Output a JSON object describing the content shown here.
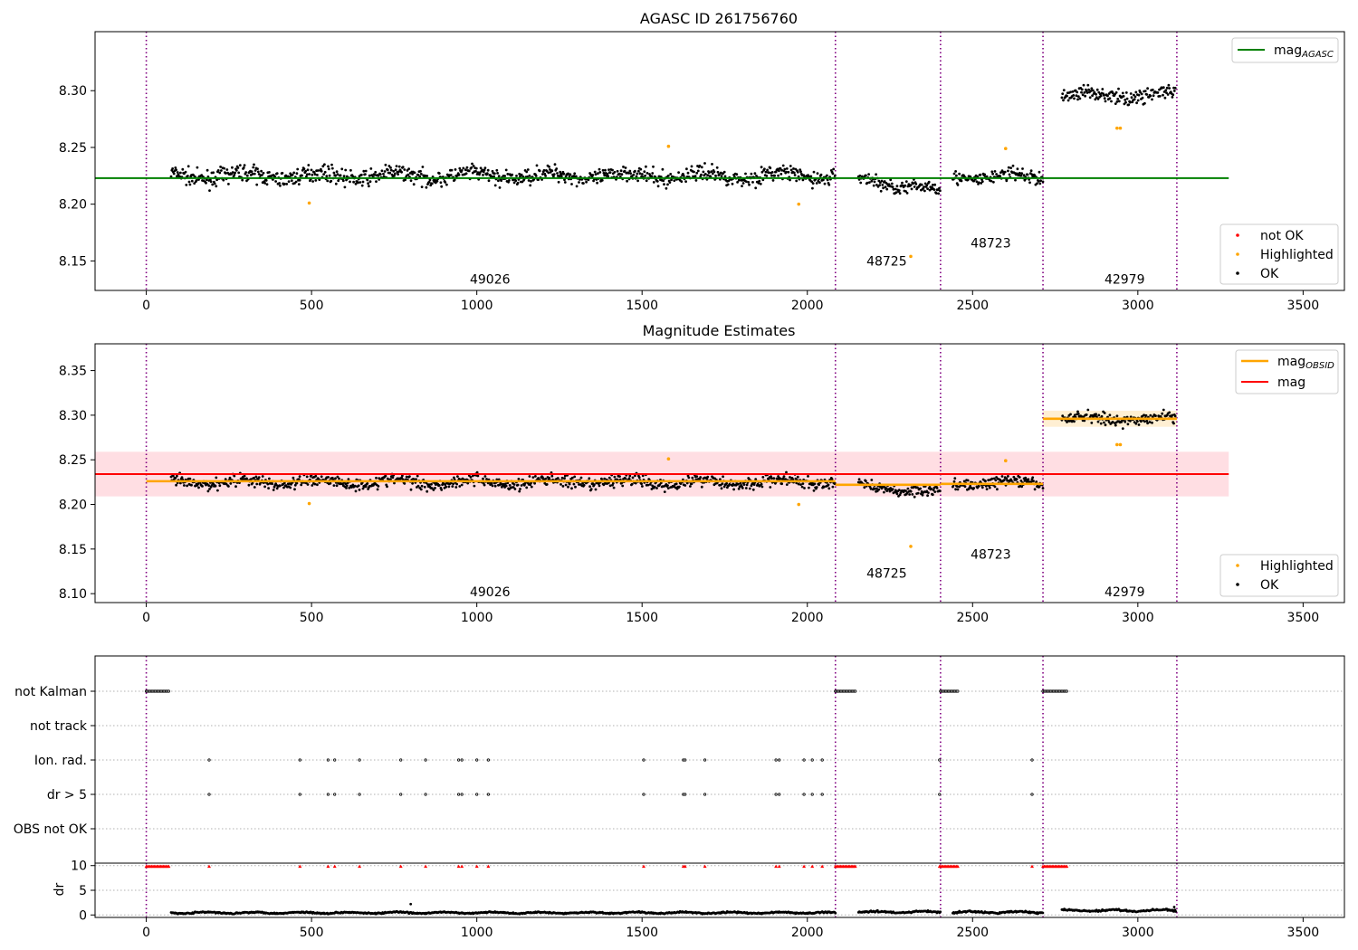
{
  "chart_data": [
    {
      "type": "scatter",
      "title": "AGASC ID 261756760",
      "xlim": [
        -155,
        3625
      ],
      "ylim": [
        8.124,
        8.352
      ],
      "xticks": [
        0,
        500,
        1000,
        1500,
        2000,
        2500,
        3000,
        3500
      ],
      "yticks": [
        8.15,
        8.2,
        8.25,
        8.3
      ],
      "ytick_labels": [
        "8.15",
        "8.20",
        "8.25",
        "8.30"
      ],
      "grid": false,
      "obsid_boundaries": [
        0,
        2085,
        2403,
        2713,
        3118
      ],
      "obsid_labels": [
        {
          "text": "49026",
          "x": 1040,
          "y": 8.13
        },
        {
          "text": "48725",
          "x": 2240,
          "y": 8.146
        },
        {
          "text": "48723",
          "x": 2555,
          "y": 8.162
        },
        {
          "text": "42979",
          "x": 2960,
          "y": 8.13
        }
      ],
      "series": [
        {
          "name": "mag_AGASC",
          "kind": "hline",
          "y": 8.223,
          "x_range": [
            -155,
            3275
          ],
          "color": "#008000"
        },
        {
          "name": "not OK",
          "kind": "points",
          "color": "#ff0000",
          "values": []
        },
        {
          "name": "Highlighted",
          "kind": "points",
          "color": "#ffa500",
          "points": [
            [
              493,
              8.201
            ],
            [
              1580,
              8.251
            ],
            [
              1974,
              8.2
            ],
            [
              2313,
              8.154
            ],
            [
              2600,
              8.249
            ],
            [
              2937,
              8.267
            ],
            [
              2947,
              8.267
            ]
          ]
        },
        {
          "name": "OK",
          "kind": "points",
          "color": "#000000",
          "segments": [
            {
              "x": [
                75,
                2085
              ],
              "mean": 8.225,
              "spread": 0.009
            },
            {
              "x": [
                2155,
                2403
              ],
              "mean": 8.222,
              "spread": 0.008,
              "trend": -0.01
            },
            {
              "x": [
                2440,
                2713
              ],
              "mean": 8.224,
              "spread": 0.008
            },
            {
              "x": [
                2770,
                3115
              ],
              "mean": 8.296,
              "spread": 0.008
            }
          ]
        }
      ],
      "legend": [
        {
          "label": "mag",
          "subscript": "AGASC",
          "color": "#008000",
          "kind": "line",
          "placement": "top-right"
        },
        {
          "label": "not OK",
          "color": "#ff0000",
          "kind": "point",
          "placement": "bottom-right"
        },
        {
          "label": "Highlighted",
          "color": "#ffa500",
          "kind": "point",
          "placement": "bottom-right"
        },
        {
          "label": "OK",
          "color": "#000000",
          "kind": "point",
          "placement": "bottom-right"
        }
      ]
    },
    {
      "type": "scatter",
      "title": "Magnitude Estimates",
      "xlim": [
        -155,
        3625
      ],
      "ylim": [
        8.09,
        8.38
      ],
      "xticks": [
        0,
        500,
        1000,
        1500,
        2000,
        2500,
        3000,
        3500
      ],
      "yticks": [
        8.1,
        8.15,
        8.2,
        8.25,
        8.3,
        8.35
      ],
      "ytick_labels": [
        "8.10",
        "8.15",
        "8.20",
        "8.25",
        "8.30",
        "8.35"
      ],
      "grid": false,
      "obsid_boundaries": [
        0,
        2085,
        2403,
        2713,
        3118
      ],
      "obsid_labels": [
        {
          "text": "49026",
          "x": 1040,
          "y": 8.097
        },
        {
          "text": "48725",
          "x": 2240,
          "y": 8.118
        },
        {
          "text": "48723",
          "x": 2555,
          "y": 8.139
        },
        {
          "text": "42979",
          "x": 2960,
          "y": 8.097
        }
      ],
      "bands": [
        {
          "x": [
            -155,
            3275
          ],
          "y": [
            8.209,
            8.259
          ],
          "color": "#ffb6c1",
          "opacity": 0.45
        },
        {
          "x": [
            2713,
            3118
          ],
          "y": [
            8.287,
            8.305
          ],
          "color": "#ffe4b5",
          "opacity": 0.6
        }
      ],
      "series": [
        {
          "name": "mag_OBSID",
          "kind": "steps",
          "color": "#ffa500",
          "steps": [
            [
              0,
              2085,
              8.226
            ],
            [
              2085,
              2403,
              8.222
            ],
            [
              2403,
              2713,
              8.223
            ],
            [
              2713,
              3118,
              8.296
            ]
          ]
        },
        {
          "name": "mag",
          "kind": "hline",
          "y": 8.234,
          "x_range": [
            -155,
            3275
          ],
          "color": "#ff0000"
        },
        {
          "name": "Highlighted",
          "kind": "points",
          "color": "#ffa500",
          "points": [
            [
              493,
              8.201
            ],
            [
              1580,
              8.251
            ],
            [
              1974,
              8.2
            ],
            [
              2313,
              8.153
            ],
            [
              2600,
              8.249
            ],
            [
              2937,
              8.267
            ],
            [
              2947,
              8.267
            ]
          ]
        },
        {
          "name": "OK",
          "kind": "points",
          "color": "#000000",
          "segments": [
            {
              "x": [
                75,
                2085
              ],
              "mean": 8.225,
              "spread": 0.009
            },
            {
              "x": [
                2155,
                2403
              ],
              "mean": 8.222,
              "spread": 0.008,
              "trend": -0.01
            },
            {
              "x": [
                2440,
                2713
              ],
              "mean": 8.224,
              "spread": 0.008
            },
            {
              "x": [
                2770,
                3115
              ],
              "mean": 8.296,
              "spread": 0.008
            }
          ]
        }
      ],
      "legend": [
        {
          "label": "mag",
          "subscript": "OBSID",
          "color": "#ffa500",
          "kind": "line",
          "placement": "top-right"
        },
        {
          "label": "mag",
          "color": "#ff0000",
          "kind": "line",
          "placement": "top-right"
        },
        {
          "label": "Highlighted",
          "color": "#ffa500",
          "kind": "point",
          "placement": "bottom-right"
        },
        {
          "label": "OK",
          "color": "#000000",
          "kind": "point",
          "placement": "bottom-right"
        }
      ]
    },
    {
      "type": "scatter",
      "title": "",
      "xlim": [
        -155,
        3625
      ],
      "flag_rows": [
        "not Kalman",
        "not track",
        "Ion. rad.",
        "dr > 5",
        "OBS not OK"
      ],
      "grid": "horizontal dotted",
      "obsid_boundaries": [
        0,
        2085,
        2403,
        2713,
        3118
      ],
      "flags": {
        "not Kalman": [
          [
            0,
            70
          ],
          [
            2085,
            2145
          ],
          [
            2403,
            2455
          ],
          [
            2713,
            2785
          ]
        ],
        "not track": [],
        "Ion. rad.": [
          190,
          465,
          550,
          570,
          645,
          770,
          845,
          945,
          955,
          1000,
          1035,
          1505,
          1625,
          1630,
          1690,
          1905,
          1915,
          1990,
          2015,
          2045,
          2400,
          2680
        ],
        "dr > 5": [
          190,
          465,
          550,
          570,
          645,
          770,
          845,
          945,
          955,
          1000,
          1035,
          1505,
          1625,
          1630,
          1690,
          1905,
          1915,
          1990,
          2015,
          2045,
          2400,
          2680
        ],
        "OBS not OK": []
      }
    },
    {
      "type": "scatter",
      "title": "",
      "xlim": [
        -155,
        3625
      ],
      "ylim": [
        -0.5,
        10.5
      ],
      "ylabel": "dr",
      "xticks": [
        0,
        500,
        1000,
        1500,
        2000,
        2500,
        3000,
        3500
      ],
      "yticks": [
        0,
        5,
        10
      ],
      "grid": "horizontal dotted",
      "obsid_boundaries": [
        0,
        2085,
        2403,
        2713,
        3118
      ],
      "clipped_markers": {
        "y": 9.8,
        "color": "#ff0000",
        "ranges": [
          [
            0,
            70
          ],
          [
            2085,
            2145
          ],
          [
            2403,
            2455
          ],
          [
            2713,
            2785
          ]
        ],
        "points": [
          190,
          465,
          550,
          570,
          645,
          770,
          845,
          945,
          955,
          1000,
          1035,
          1505,
          1625,
          1630,
          1690,
          1905,
          1915,
          1990,
          2015,
          2045,
          2400,
          2680
        ]
      },
      "series": [
        {
          "name": "dr",
          "kind": "points",
          "color": "#000000",
          "segments": [
            {
              "x": [
                75,
                2085
              ],
              "mean": 0.45,
              "spread": 0.25
            },
            {
              "x": [
                2155,
                2403
              ],
              "mean": 0.6,
              "spread": 0.3
            },
            {
              "x": [
                2440,
                2713
              ],
              "mean": 0.55,
              "spread": 0.3
            },
            {
              "x": [
                2770,
                3115
              ],
              "mean": 0.9,
              "spread": 0.3
            }
          ],
          "outliers": [
            [
              800,
              2.2
            ],
            [
              3110,
              1.6
            ]
          ]
        }
      ]
    }
  ]
}
